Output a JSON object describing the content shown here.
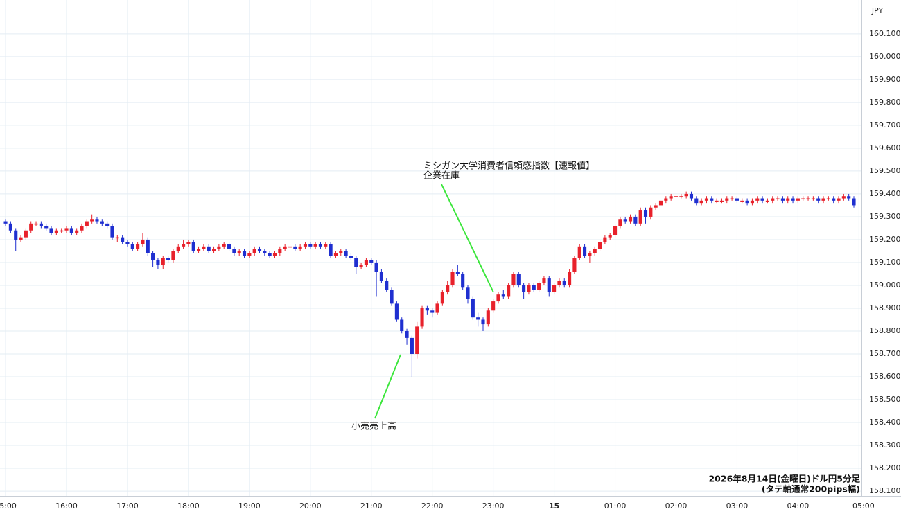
{
  "chart_data": {
    "type": "candlestick",
    "currency": "JPY",
    "caption": [
      "2026年8月14日(金曜日)ドル円5分足",
      "(タテ軸通常200pips幅)"
    ],
    "up_color": "#e8212b",
    "down_color": "#1f2fd0",
    "grid": true,
    "xlim": [
      -1.1,
      168.5
    ],
    "ylim": [
      158.079,
      160.248
    ],
    "xticks": [
      {
        "value": 0,
        "label": "15:00"
      },
      {
        "value": 12,
        "label": "16:00"
      },
      {
        "value": 24,
        "label": "17:00"
      },
      {
        "value": 36,
        "label": "18:00"
      },
      {
        "value": 48,
        "label": "19:00"
      },
      {
        "value": 60,
        "label": "20:00"
      },
      {
        "value": 72,
        "label": "21:00"
      },
      {
        "value": 84,
        "label": "22:00"
      },
      {
        "value": 96,
        "label": "23:00"
      },
      {
        "value": 108,
        "label": "15"
      },
      {
        "value": 120,
        "label": "01:00"
      },
      {
        "value": 132,
        "label": "02:00"
      },
      {
        "value": 144,
        "label": "03:00"
      },
      {
        "value": 156,
        "label": "04:00"
      },
      {
        "value": 168,
        "label": "05:00"
      }
    ],
    "yticks": [
      {
        "value": 158.1,
        "label": "158.100"
      },
      {
        "value": 158.2,
        "label": "158.200"
      },
      {
        "value": 158.3,
        "label": "158.300"
      },
      {
        "value": 158.4,
        "label": "158.400"
      },
      {
        "value": 158.5,
        "label": "158.500"
      },
      {
        "value": 158.6,
        "label": "158.600"
      },
      {
        "value": 158.7,
        "label": "158.700"
      },
      {
        "value": 158.8,
        "label": "158.800"
      },
      {
        "value": 158.9,
        "label": "158.900"
      },
      {
        "value": 159.0,
        "label": "159.000"
      },
      {
        "value": 159.1,
        "label": "159.100"
      },
      {
        "value": 159.2,
        "label": "159.200"
      },
      {
        "value": 159.3,
        "label": "159.300"
      },
      {
        "value": 159.4,
        "label": "159.400"
      },
      {
        "value": 159.5,
        "label": "159.500"
      },
      {
        "value": 159.6,
        "label": "159.600"
      },
      {
        "value": 159.7,
        "label": "159.700"
      },
      {
        "value": 159.8,
        "label": "159.800"
      },
      {
        "value": 159.9,
        "label": "159.900"
      },
      {
        "value": 160.0,
        "label": "160.000"
      },
      {
        "value": 160.1,
        "label": "160.100"
      }
    ],
    "annotations": [
      {
        "text": [
          "小売売上高"
        ]
      },
      {
        "text": [
          "ミシガン大学消費者信頼感指数【速報値】",
          "企業在庫"
        ]
      }
    ],
    "open": [
      159.28,
      159.27,
      159.24,
      159.2,
      159.21,
      159.24,
      159.27,
      159.27,
      159.26,
      159.25,
      159.23,
      159.24,
      159.24,
      159.25,
      159.23,
      159.24,
      159.26,
      159.28,
      159.29,
      159.28,
      159.27,
      159.26,
      159.21,
      159.21,
      159.19,
      159.18,
      159.16,
      159.18,
      159.2,
      159.14,
      159.11,
      159.09,
      159.12,
      159.11,
      159.15,
      159.17,
      159.18,
      159.19,
      159.15,
      159.16,
      159.17,
      159.15,
      159.16,
      159.17,
      159.18,
      159.16,
      159.14,
      159.15,
      159.13,
      159.14,
      159.16,
      159.15,
      159.14,
      159.13,
      159.14,
      159.16,
      159.17,
      159.17,
      159.16,
      159.17,
      159.18,
      159.17,
      159.18,
      159.17,
      159.18,
      159.13,
      159.14,
      159.15,
      159.13,
      159.12,
      159.08,
      159.09,
      159.11,
      159.1,
      159.06,
      159.02,
      158.98,
      158.92,
      158.85,
      158.8,
      158.77,
      158.7,
      158.82,
      158.9,
      158.89,
      158.88,
      158.92,
      158.97,
      159.0,
      159.06,
      159.05,
      158.99,
      158.94,
      158.86,
      158.85,
      158.83,
      158.89,
      158.93,
      158.96,
      158.95,
      159.0,
      159.05,
      159.0,
      158.97,
      159.0,
      158.98,
      159.01,
      159.03,
      158.97,
      159.0,
      159.02,
      159.0,
      159.06,
      159.12,
      159.17,
      159.13,
      159.14,
      159.16,
      159.19,
      159.21,
      159.22,
      159.26,
      159.29,
      159.28,
      159.3,
      159.27,
      159.33,
      159.3,
      159.34,
      159.35,
      159.37,
      159.38,
      159.39,
      159.39,
      159.39,
      159.4,
      159.38,
      159.36,
      159.37,
      159.38,
      159.37,
      159.37,
      159.37,
      159.38,
      159.38,
      159.37,
      159.37,
      159.36,
      159.37,
      159.38,
      159.37,
      159.37,
      159.38,
      159.38,
      159.37,
      159.38,
      159.37,
      159.38,
      159.38,
      159.38,
      159.38,
      159.37,
      159.38,
      159.38,
      159.37,
      159.38,
      159.39,
      159.38
    ],
    "high": [
      159.29,
      159.28,
      159.25,
      159.22,
      159.25,
      159.28,
      159.28,
      159.28,
      159.27,
      159.26,
      159.25,
      159.25,
      159.26,
      159.26,
      159.25,
      159.27,
      159.29,
      159.31,
      159.3,
      159.29,
      159.28,
      159.27,
      159.22,
      159.22,
      159.2,
      159.19,
      159.19,
      159.23,
      159.21,
      159.15,
      159.12,
      159.13,
      159.13,
      159.16,
      159.18,
      159.2,
      159.2,
      159.2,
      159.17,
      159.18,
      159.18,
      159.17,
      159.18,
      159.19,
      159.19,
      159.17,
      159.16,
      159.16,
      159.15,
      159.17,
      159.17,
      159.16,
      159.15,
      159.15,
      159.17,
      159.18,
      159.18,
      159.18,
      159.18,
      159.19,
      159.19,
      159.19,
      159.19,
      159.19,
      159.19,
      159.15,
      159.16,
      159.16,
      159.14,
      159.13,
      159.1,
      159.12,
      159.12,
      159.11,
      159.07,
      159.03,
      158.99,
      158.93,
      158.86,
      158.81,
      158.78,
      158.84,
      158.91,
      158.91,
      158.9,
      158.93,
      158.98,
      159.02,
      159.07,
      159.09,
      159.06,
      159.0,
      158.95,
      158.88,
      158.86,
      158.9,
      158.94,
      158.97,
      158.98,
      159.01,
      159.06,
      159.06,
      159.01,
      159.01,
      159.01,
      159.02,
      159.04,
      159.04,
      159.01,
      159.03,
      159.03,
      159.07,
      159.13,
      159.18,
      159.18,
      159.15,
      159.17,
      159.2,
      159.22,
      159.23,
      159.27,
      159.3,
      159.3,
      159.31,
      159.31,
      159.34,
      159.34,
      159.35,
      159.36,
      159.38,
      159.39,
      159.4,
      159.4,
      159.4,
      159.41,
      159.41,
      159.39,
      159.38,
      159.39,
      159.39,
      159.38,
      159.38,
      159.39,
      159.39,
      159.39,
      159.38,
      159.38,
      159.38,
      159.39,
      159.39,
      159.38,
      159.39,
      159.39,
      159.39,
      159.39,
      159.39,
      159.39,
      159.39,
      159.39,
      159.39,
      159.39,
      159.39,
      159.39,
      159.39,
      159.39,
      159.4,
      159.4,
      159.39
    ],
    "low": [
      159.26,
      159.23,
      159.15,
      159.19,
      159.2,
      159.23,
      159.26,
      159.25,
      159.24,
      159.22,
      159.22,
      159.23,
      159.23,
      159.22,
      159.22,
      159.23,
      159.25,
      159.27,
      159.27,
      159.26,
      159.25,
      159.2,
      159.19,
      159.18,
      159.17,
      159.15,
      159.15,
      159.17,
      159.13,
      159.08,
      159.07,
      159.07,
      159.1,
      159.1,
      159.14,
      159.16,
      159.17,
      159.14,
      159.14,
      159.15,
      159.14,
      159.14,
      159.15,
      159.16,
      159.15,
      159.13,
      159.13,
      159.12,
      159.12,
      159.13,
      159.14,
      159.13,
      159.12,
      159.12,
      159.13,
      159.15,
      159.16,
      159.15,
      159.15,
      159.16,
      159.16,
      159.16,
      159.16,
      159.16,
      159.12,
      159.12,
      159.13,
      159.12,
      159.11,
      159.05,
      159.07,
      159.08,
      159.09,
      158.95,
      159.01,
      158.97,
      158.91,
      158.84,
      158.79,
      158.74,
      158.6,
      158.68,
      158.81,
      158.87,
      158.86,
      158.87,
      158.91,
      158.96,
      158.99,
      159.04,
      158.98,
      158.92,
      158.85,
      158.82,
      158.8,
      158.82,
      158.88,
      158.92,
      158.94,
      158.94,
      158.99,
      158.99,
      158.94,
      158.96,
      158.97,
      158.97,
      159.0,
      158.95,
      158.96,
      158.99,
      158.99,
      158.99,
      159.05,
      159.11,
      159.12,
      159.1,
      159.13,
      159.15,
      159.18,
      159.2,
      159.21,
      159.25,
      159.27,
      159.27,
      159.26,
      159.26,
      159.27,
      159.29,
      159.33,
      159.34,
      159.36,
      159.37,
      159.38,
      159.38,
      159.38,
      159.37,
      159.35,
      159.35,
      159.36,
      159.36,
      159.36,
      159.36,
      159.36,
      159.37,
      159.36,
      159.36,
      159.35,
      159.35,
      159.36,
      159.36,
      159.36,
      159.36,
      159.37,
      159.36,
      159.36,
      159.36,
      159.36,
      159.37,
      159.37,
      159.37,
      159.36,
      159.36,
      159.37,
      159.36,
      159.36,
      159.37,
      159.37,
      159.34
    ],
    "close": [
      159.27,
      159.24,
      159.2,
      159.21,
      159.24,
      159.27,
      159.27,
      159.26,
      159.25,
      159.23,
      159.24,
      159.24,
      159.25,
      159.23,
      159.24,
      159.26,
      159.28,
      159.29,
      159.28,
      159.27,
      159.26,
      159.21,
      159.21,
      159.19,
      159.18,
      159.16,
      159.18,
      159.2,
      159.14,
      159.11,
      159.09,
      159.12,
      159.11,
      159.15,
      159.17,
      159.18,
      159.19,
      159.15,
      159.16,
      159.17,
      159.15,
      159.16,
      159.17,
      159.18,
      159.16,
      159.14,
      159.15,
      159.13,
      159.14,
      159.16,
      159.15,
      159.14,
      159.13,
      159.14,
      159.16,
      159.17,
      159.17,
      159.16,
      159.17,
      159.18,
      159.17,
      159.18,
      159.17,
      159.18,
      159.13,
      159.14,
      159.15,
      159.13,
      159.12,
      159.08,
      159.09,
      159.11,
      159.1,
      159.06,
      159.02,
      158.98,
      158.92,
      158.85,
      158.8,
      158.77,
      158.7,
      158.82,
      158.9,
      158.89,
      158.88,
      158.92,
      158.97,
      159.0,
      159.06,
      159.05,
      158.99,
      158.94,
      158.86,
      158.85,
      158.83,
      158.89,
      158.93,
      158.96,
      158.95,
      159.0,
      159.05,
      159.0,
      158.97,
      159.0,
      158.98,
      159.01,
      159.03,
      158.97,
      159.0,
      159.02,
      159.0,
      159.06,
      159.12,
      159.17,
      159.13,
      159.14,
      159.16,
      159.19,
      159.21,
      159.22,
      159.26,
      159.29,
      159.28,
      159.3,
      159.27,
      159.33,
      159.3,
      159.34,
      159.35,
      159.37,
      159.38,
      159.39,
      159.39,
      159.39,
      159.4,
      159.38,
      159.36,
      159.37,
      159.38,
      159.37,
      159.37,
      159.37,
      159.38,
      159.38,
      159.37,
      159.37,
      159.36,
      159.37,
      159.38,
      159.37,
      159.37,
      159.38,
      159.38,
      159.37,
      159.38,
      159.37,
      159.38,
      159.38,
      159.38,
      159.38,
      159.37,
      159.38,
      159.38,
      159.37,
      159.38,
      159.39,
      159.38,
      159.35
    ]
  }
}
